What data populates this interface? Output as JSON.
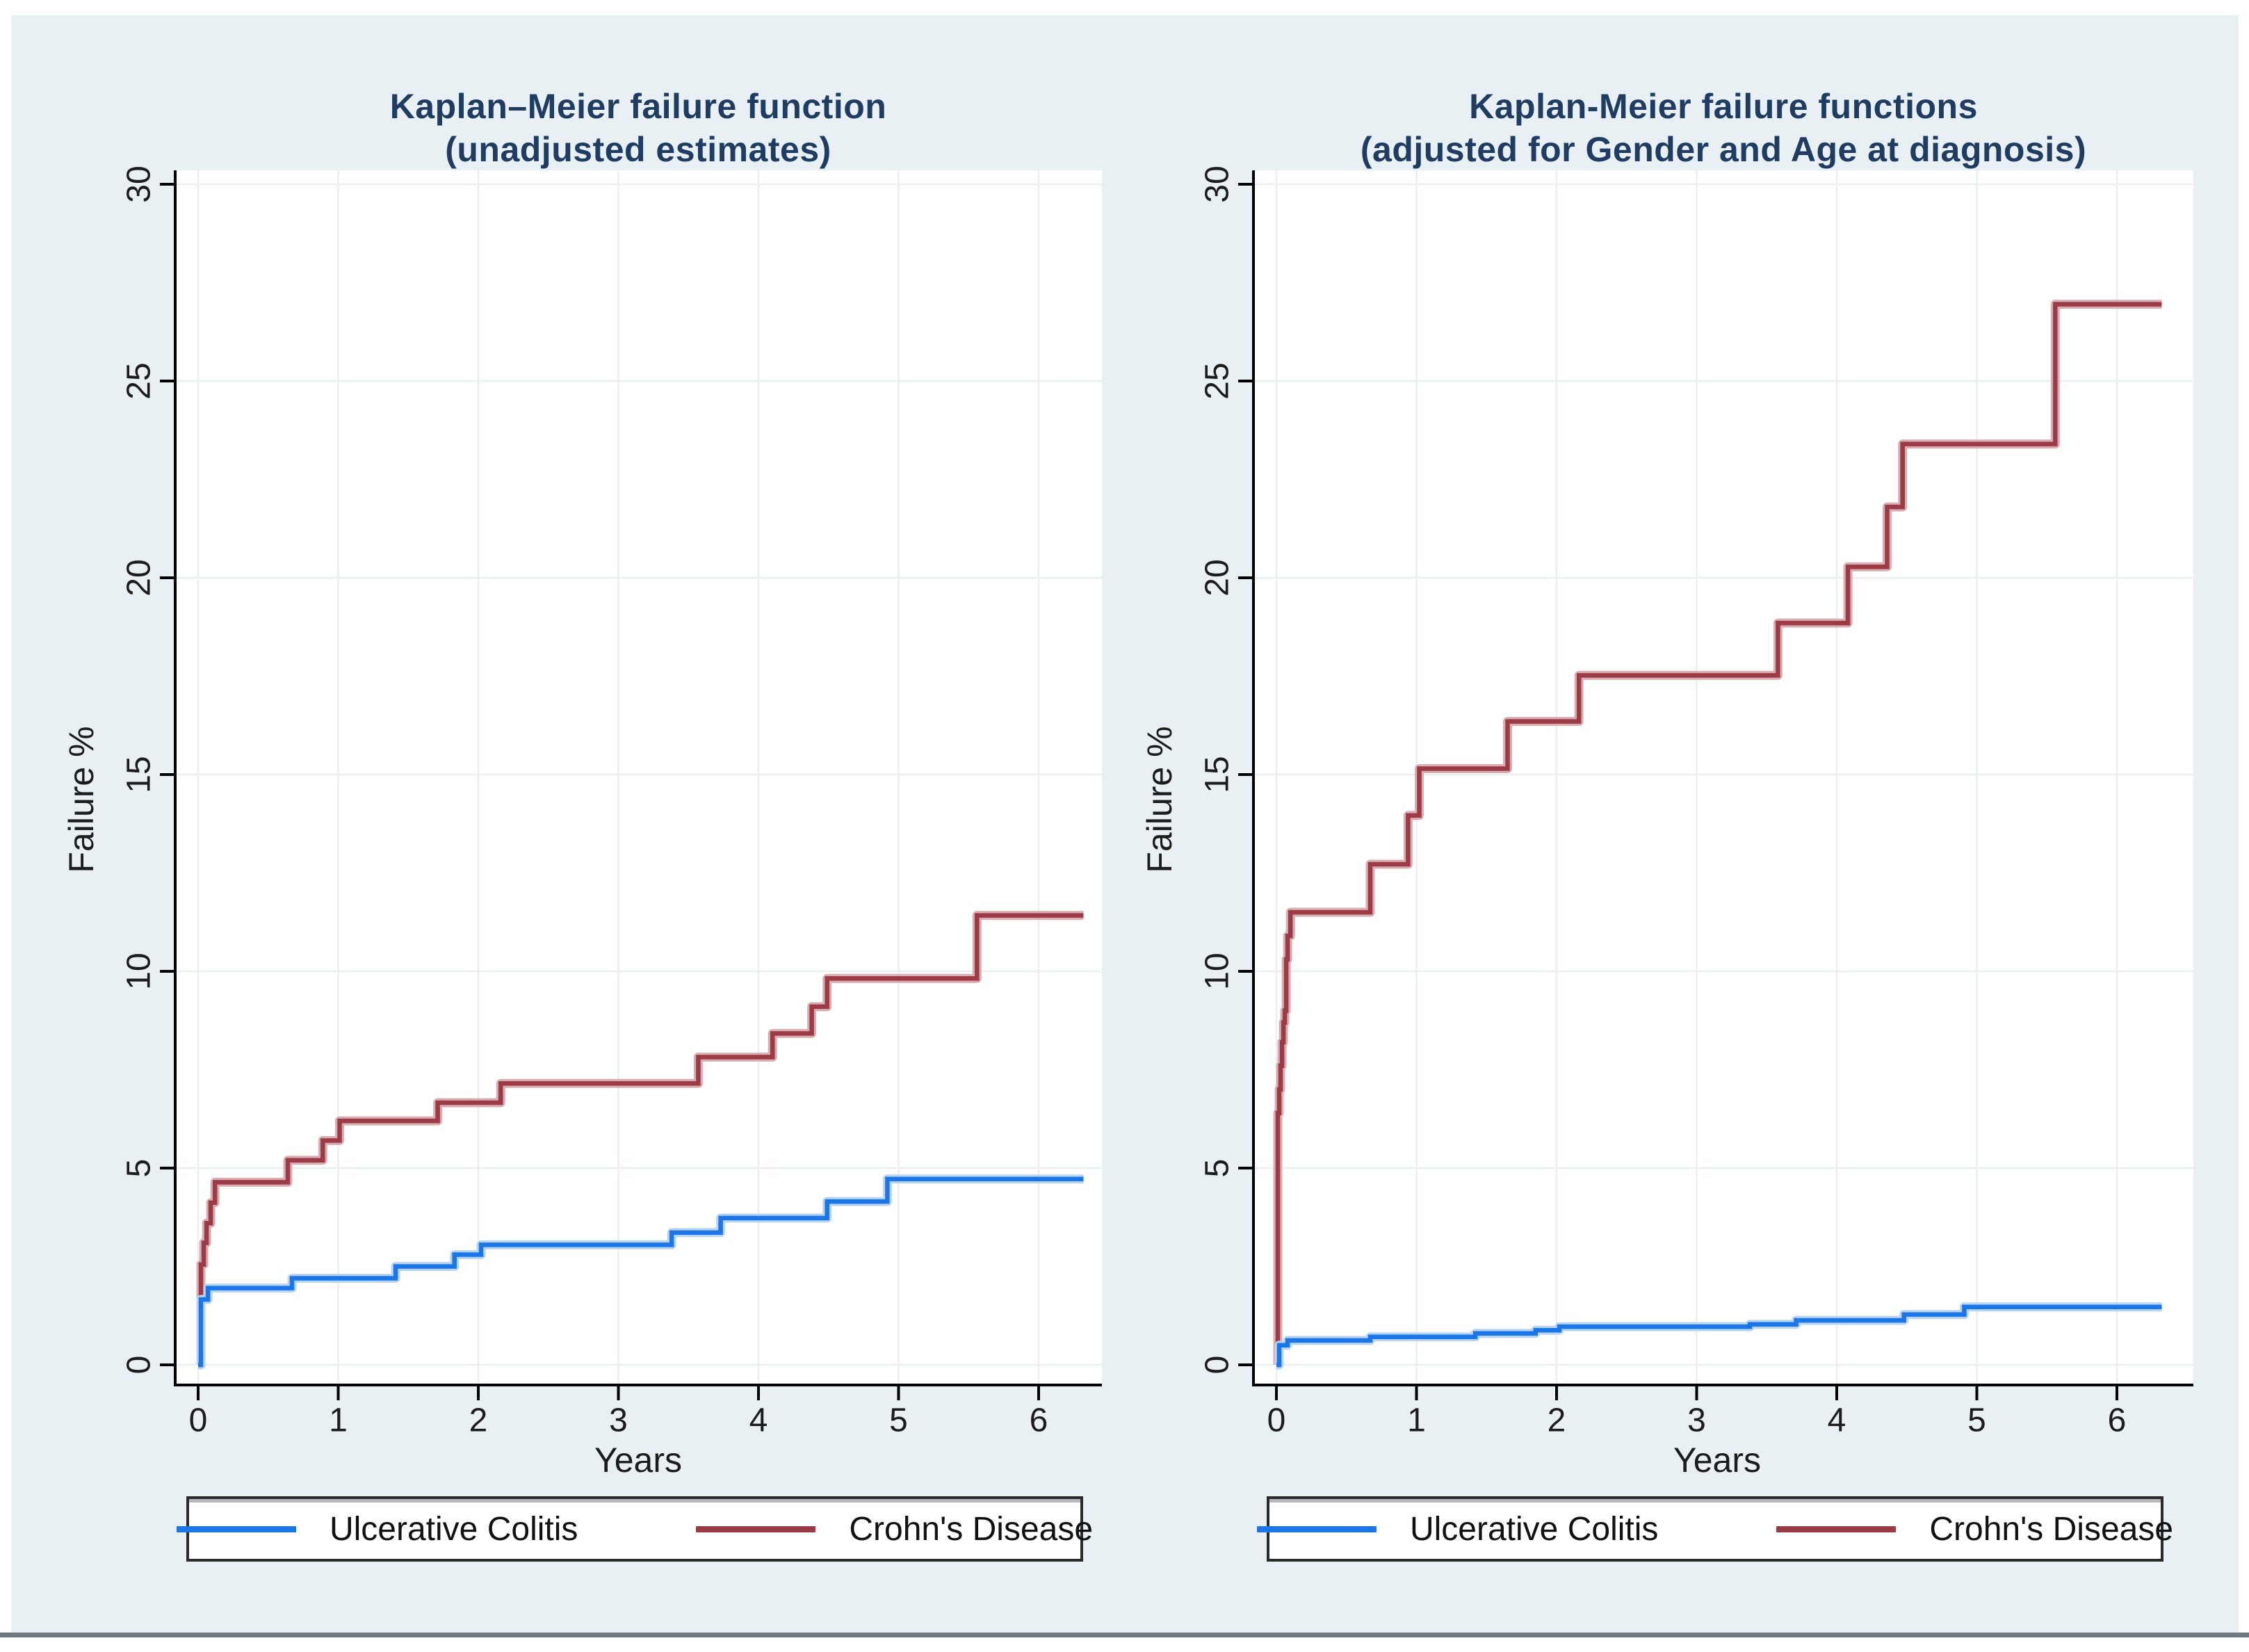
{
  "figure": {
    "page_background": "#ffffff",
    "background_color": "#e9f0f3",
    "bottom_rule_color": "#70797f",
    "title_color": "#1f3c63",
    "axis_color": "#000000",
    "gridline_color": "#e9f0ef",
    "x_axis_label": "Years",
    "y_axis_label": "Failure %",
    "x_ticks": [
      0,
      1,
      2,
      3,
      4,
      5,
      6
    ],
    "y_ticks": [
      0,
      5,
      10,
      15,
      20,
      25,
      30
    ]
  },
  "legend": {
    "entries": [
      {
        "label": "Ulcerative Colitis",
        "color": "#1b76e8",
        "halo": "#b9d4f6"
      },
      {
        "label": "Crohn's Disease",
        "color": "#9c3a46",
        "halo": "#d9aeb3"
      }
    ]
  },
  "chart_data": [
    {
      "type": "line",
      "subtype": "step",
      "panel": "left",
      "title": [
        "Kaplan–Meier failure function",
        "(unadjusted estimates)"
      ],
      "xlabel": "Years",
      "ylabel": "Failure %",
      "xlim": [
        0,
        6.35
      ],
      "ylim": [
        0,
        30
      ],
      "grid": true,
      "legend_position": "bottom",
      "series": [
        {
          "name": "Crohn's Disease",
          "color": "#9c3a46",
          "points": [
            [
              0,
              0
            ],
            [
              0.02,
              2.55
            ],
            [
              0.04,
              3.1
            ],
            [
              0.06,
              3.6
            ],
            [
              0.09,
              4.12
            ],
            [
              0.12,
              4.64
            ],
            [
              0.64,
              5.2
            ],
            [
              0.89,
              5.7
            ],
            [
              1.01,
              6.2
            ],
            [
              1.71,
              6.66
            ],
            [
              2.16,
              7.15
            ],
            [
              3.57,
              7.82
            ],
            [
              4.1,
              8.42
            ],
            [
              4.38,
              9.1
            ],
            [
              4.49,
              9.82
            ],
            [
              5.56,
              11.42
            ],
            [
              6.32,
              11.42
            ]
          ]
        },
        {
          "name": "Ulcerative Colitis",
          "color": "#1b76e8",
          "points": [
            [
              0,
              0
            ],
            [
              0.02,
              1.66
            ],
            [
              0.07,
              1.95
            ],
            [
              0.67,
              2.2
            ],
            [
              1.41,
              2.5
            ],
            [
              1.83,
              2.8
            ],
            [
              2.02,
              3.05
            ],
            [
              3.38,
              3.36
            ],
            [
              3.73,
              3.73
            ],
            [
              4.49,
              4.15
            ],
            [
              4.92,
              4.72
            ],
            [
              6.32,
              4.72
            ]
          ]
        }
      ]
    },
    {
      "type": "line",
      "subtype": "step",
      "panel": "right",
      "title": [
        "Kaplan-Meier failure functions",
        "(adjusted for Gender and Age at diagnosis)"
      ],
      "xlabel": "Years",
      "ylabel": "Failure %",
      "xlim": [
        0,
        6.35
      ],
      "ylim": [
        0,
        30
      ],
      "grid": true,
      "legend_position": "bottom",
      "series": [
        {
          "name": "Crohn's Disease",
          "color": "#9c3a46",
          "points": [
            [
              0,
              0
            ],
            [
              0.01,
              6.4
            ],
            [
              0.02,
              7.0
            ],
            [
              0.03,
              7.6
            ],
            [
              0.04,
              8.2
            ],
            [
              0.05,
              8.7
            ],
            [
              0.06,
              9.0
            ],
            [
              0.07,
              10.3
            ],
            [
              0.08,
              10.9
            ],
            [
              0.1,
              11.5
            ],
            [
              0.67,
              12.72
            ],
            [
              0.94,
              13.96
            ],
            [
              1.02,
              15.15
            ],
            [
              1.65,
              16.35
            ],
            [
              2.16,
              17.52
            ],
            [
              3.58,
              18.85
            ],
            [
              4.08,
              20.28
            ],
            [
              4.36,
              21.8
            ],
            [
              4.47,
              23.4
            ],
            [
              5.56,
              26.95
            ],
            [
              6.32,
              26.95
            ]
          ]
        },
        {
          "name": "Ulcerative Colitis",
          "color": "#1b76e8",
          "points": [
            [
              0,
              0
            ],
            [
              0.02,
              0.5
            ],
            [
              0.08,
              0.62
            ],
            [
              0.67,
              0.71
            ],
            [
              1.42,
              0.8
            ],
            [
              1.85,
              0.88
            ],
            [
              2.02,
              0.97
            ],
            [
              3.38,
              1.03
            ],
            [
              3.71,
              1.13
            ],
            [
              4.48,
              1.28
            ],
            [
              4.91,
              1.47
            ],
            [
              6.32,
              1.47
            ]
          ]
        }
      ]
    }
  ]
}
